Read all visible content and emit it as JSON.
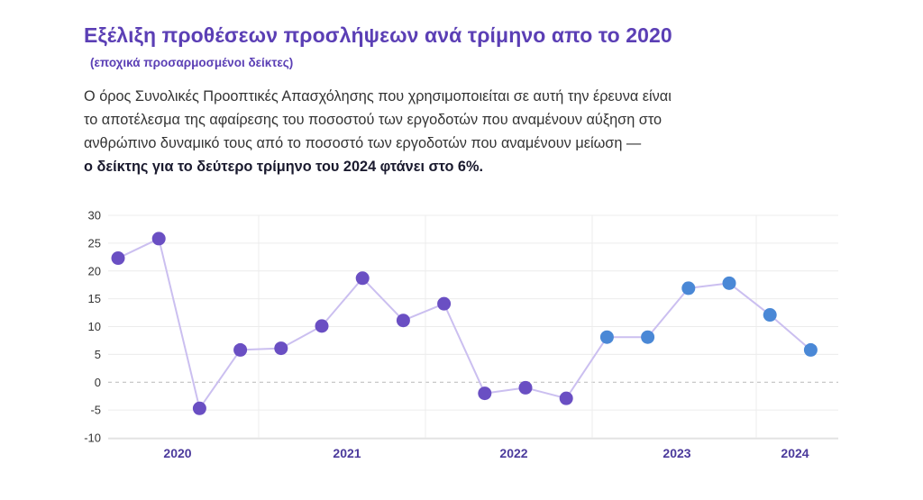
{
  "title": "Εξέλιξη προθέσεων προσλήψεων ανά τρίμηνο απο το 2020",
  "subtitle": "(εποχικά προσαρμοσμένοι δείκτες)",
  "description_lines": [
    "Ο όρος Συνολικές Προοπτικές Απασχόλησης που χρησιμοποιείται σε αυτή την έρευνα είναι",
    "το αποτέλεσμα της αφαίρεσης του ποσοστού των εργοδοτών που αναμένουν αύξηση στο",
    "ανθρώπινο δυναμικό τους από το ποσοστό των εργοδοτών που αναμένουν μείωση  —"
  ],
  "description_bold": "ο δείκτης για το δεύτερο τρίμηνο του 2024 φτάνει στο 6%.",
  "colors": {
    "title": "#5b3fb5",
    "point_purple": "#6a4fc3",
    "point_blue": "#4a88d6",
    "line": "#cbbff0",
    "year_label": "#4b3a9c"
  },
  "chart_data": {
    "type": "line",
    "ylim": [
      -10,
      30
    ],
    "yticks": [
      "30",
      "25",
      "20",
      "15",
      "10",
      "5",
      "0",
      "-5",
      "-10"
    ],
    "x_year_labels": [
      "2020",
      "2021",
      "2022",
      "2023",
      "2024"
    ],
    "grid": true,
    "series": [
      {
        "values": [
          22.3,
          25.8,
          -4.7,
          5.8,
          6.1,
          10.1,
          18.7,
          11.1,
          14.1,
          -2.0,
          -1.0,
          -2.9,
          8.1,
          8.1,
          16.9,
          17.8,
          12.1,
          5.8
        ],
        "point_colors": [
          "purple",
          "purple",
          "purple",
          "purple",
          "purple",
          "purple",
          "purple",
          "purple",
          "purple",
          "purple",
          "purple",
          "purple",
          "blue",
          "blue",
          "blue",
          "blue",
          "blue",
          "blue"
        ]
      }
    ]
  }
}
